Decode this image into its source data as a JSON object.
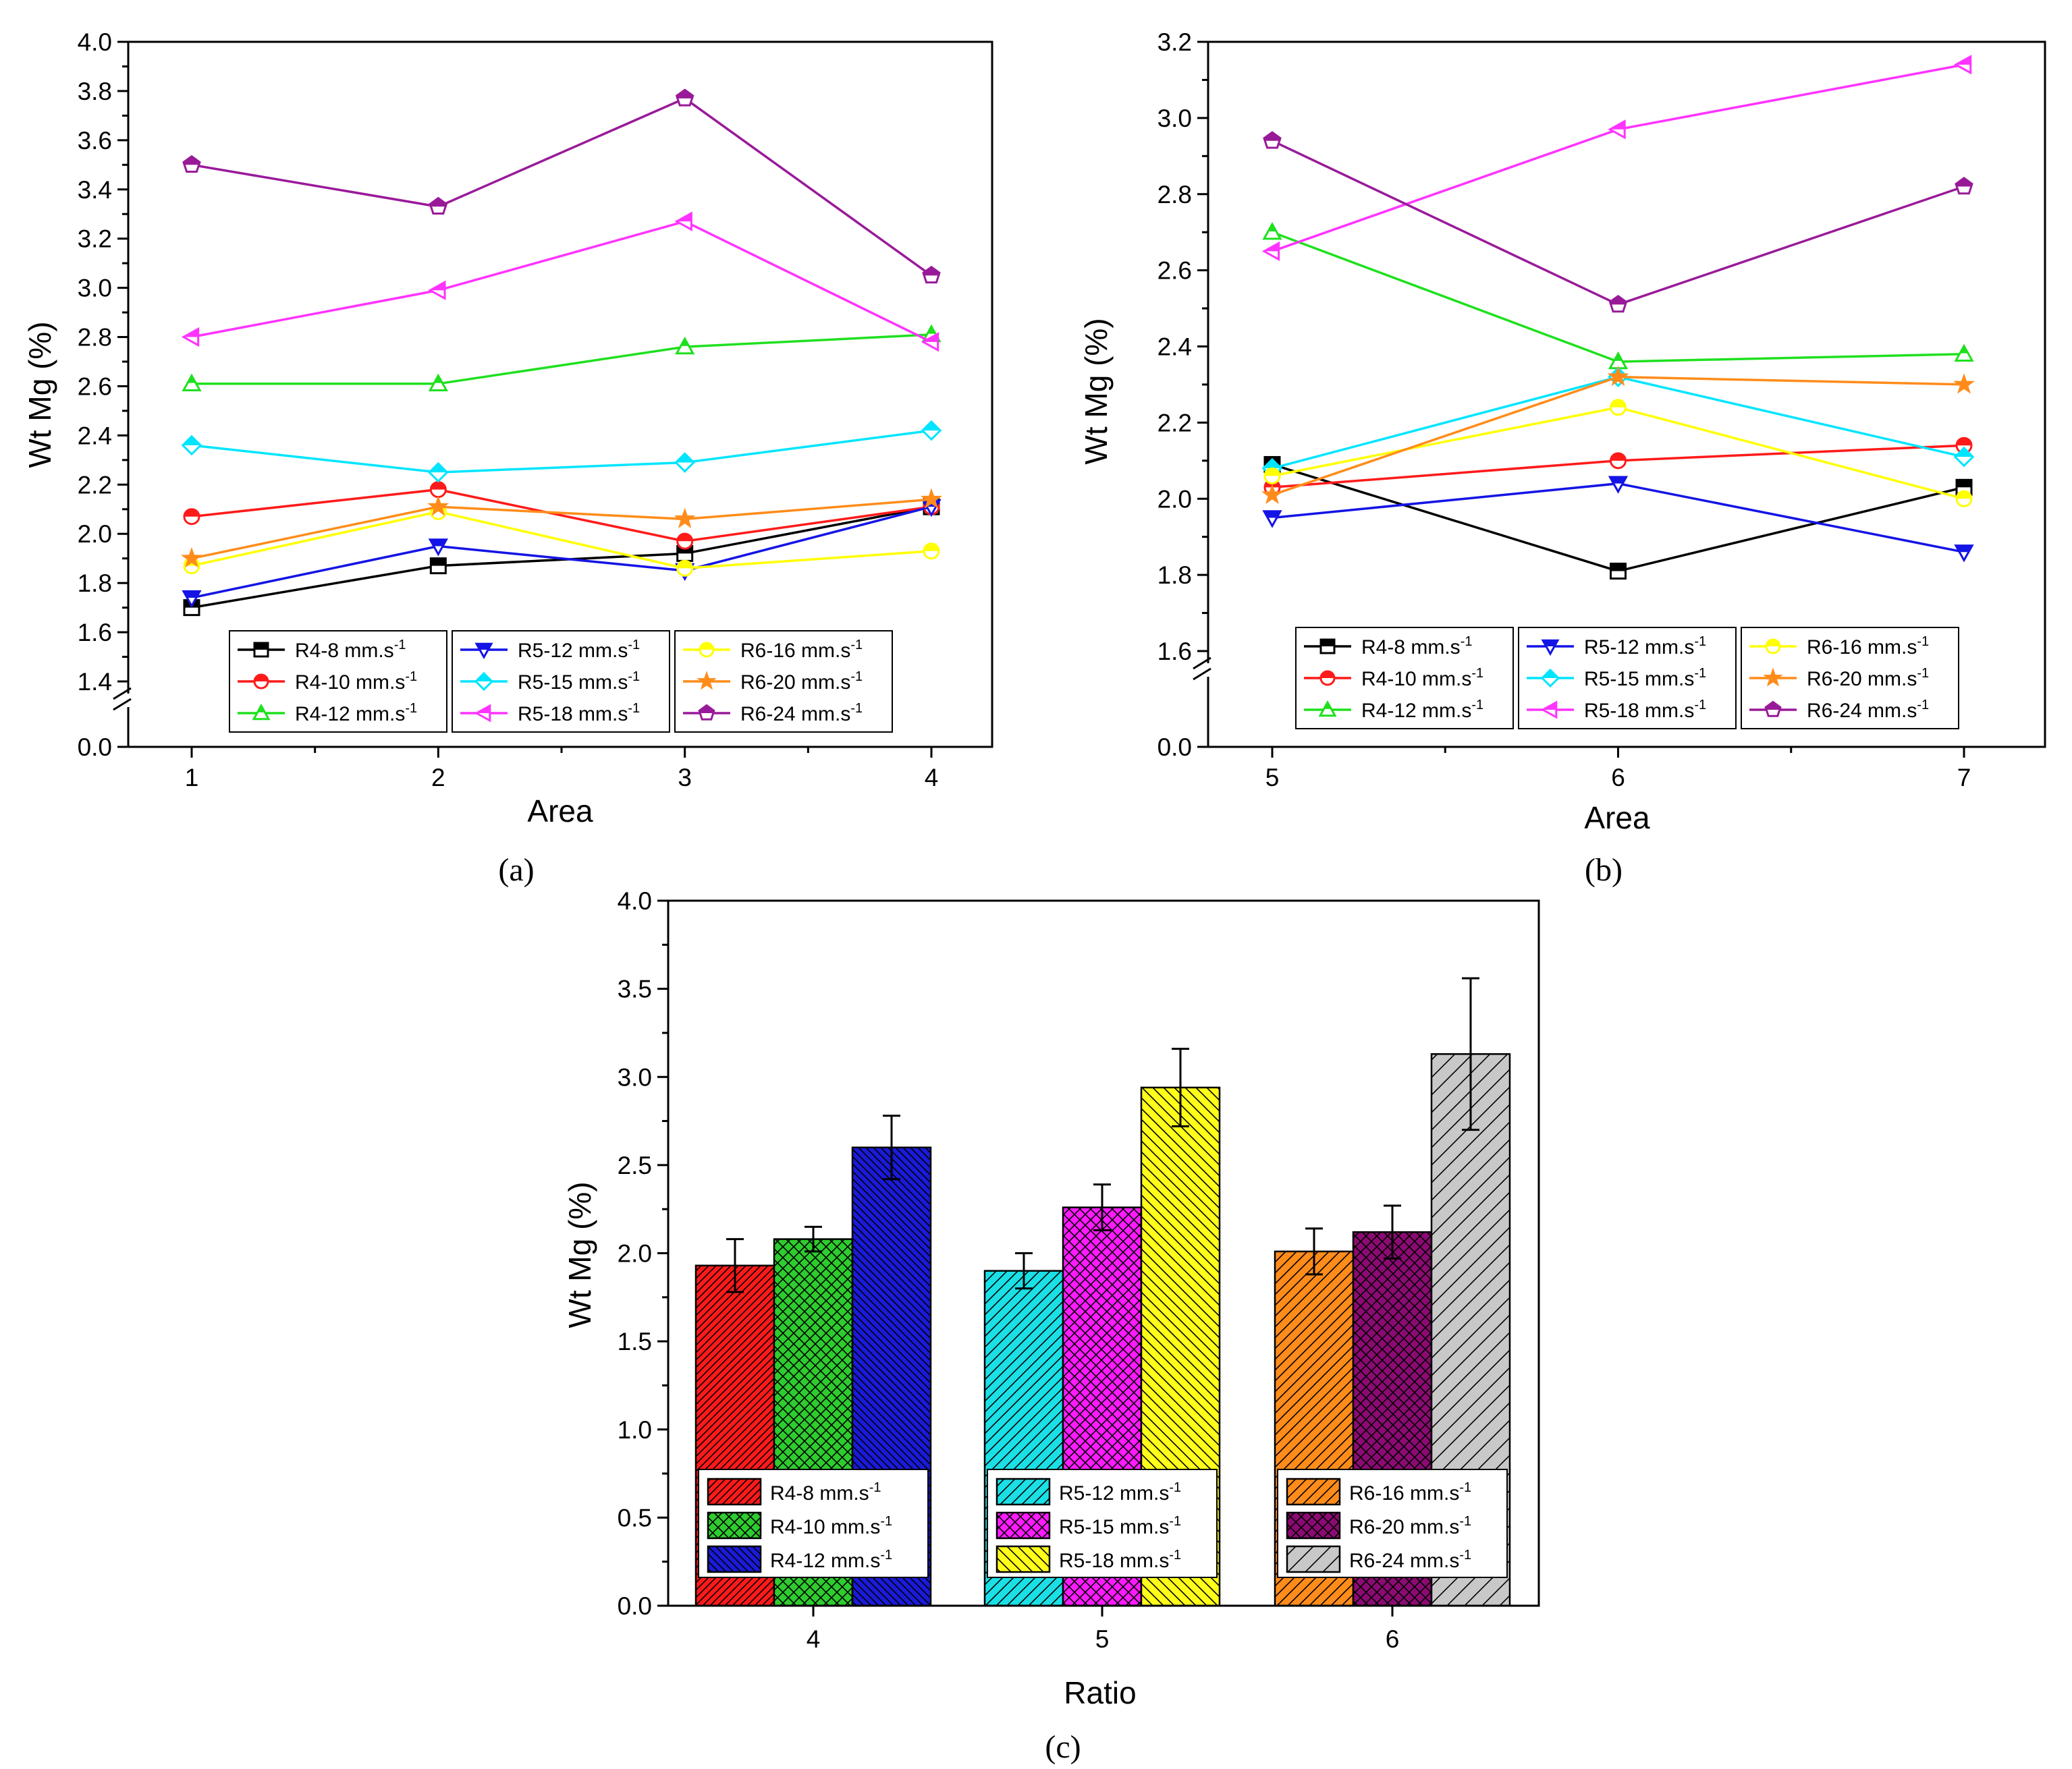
{
  "chart_data": [
    {
      "panel": "(a)",
      "type": "line",
      "xlabel": "Area",
      "ylabel": "Wt Mg (%)",
      "x": [
        1,
        2,
        3,
        4
      ],
      "ylim": [
        1.4,
        4.0
      ],
      "y_break": true,
      "y_break_base": "0.0",
      "yticks": [
        "1.4",
        "1.6",
        "1.8",
        "2.0",
        "2.2",
        "2.4",
        "2.6",
        "2.8",
        "3.0",
        "3.2",
        "3.4",
        "3.6",
        "3.8",
        "4.0"
      ],
      "xticks": [
        "1",
        "2",
        "3",
        "4"
      ],
      "legend_location": "bottom-center",
      "series": [
        {
          "name": "R4-8 mm.s",
          "color": "#000000",
          "marker": "square",
          "values": [
            1.7,
            1.87,
            1.92,
            2.11
          ]
        },
        {
          "name": "R4-10 mm.s",
          "color": "#ff1a1a",
          "marker": "circle",
          "values": [
            2.07,
            2.18,
            1.97,
            2.11
          ]
        },
        {
          "name": "R4-12 mm.s",
          "color": "#1fe01f",
          "marker": "triangle-up",
          "values": [
            2.61,
            2.61,
            2.76,
            2.81
          ]
        },
        {
          "name": "R5-12 mm.s",
          "color": "#1414e6",
          "marker": "triangle-down",
          "values": [
            1.74,
            1.95,
            1.85,
            2.11
          ]
        },
        {
          "name": "R5-15 mm.s",
          "color": "#00e5ff",
          "marker": "diamond",
          "values": [
            2.36,
            2.25,
            2.29,
            2.42
          ]
        },
        {
          "name": "R5-18 mm.s",
          "color": "#ff33ff",
          "marker": "triangle-left",
          "values": [
            2.8,
            2.99,
            3.27,
            2.78
          ]
        },
        {
          "name": "R6-16 mm.s",
          "color": "#ffff00",
          "marker": "circle",
          "values": [
            1.87,
            2.09,
            1.86,
            1.93
          ]
        },
        {
          "name": "R6-20 mm.s",
          "color": "#ff8c1a",
          "marker": "star",
          "values": [
            1.9,
            2.11,
            2.06,
            2.14
          ]
        },
        {
          "name": "R6-24 mm.s",
          "color": "#991a99",
          "marker": "pentagon",
          "values": [
            3.5,
            3.33,
            3.77,
            3.05
          ]
        }
      ],
      "legend_superscript": "-1"
    },
    {
      "panel": "(b)",
      "type": "line",
      "xlabel": "Area",
      "ylabel": "Wt Mg (%)",
      "x": [
        5,
        6,
        7
      ],
      "ylim": [
        1.6,
        3.2
      ],
      "y_break": true,
      "y_break_base": "0.0",
      "yticks": [
        "1.6",
        "1.8",
        "2.0",
        "2.2",
        "2.4",
        "2.6",
        "2.8",
        "3.0",
        "3.2"
      ],
      "xticks": [
        "5",
        "6",
        "7"
      ],
      "legend_location": "bottom-center",
      "series": [
        {
          "name": "R4-8 mm.s",
          "color": "#000000",
          "marker": "square",
          "values": [
            2.09,
            1.81,
            2.03
          ]
        },
        {
          "name": "R4-10 mm.s",
          "color": "#ff1a1a",
          "marker": "circle",
          "values": [
            2.03,
            2.1,
            2.14
          ]
        },
        {
          "name": "R4-12 mm.s",
          "color": "#1fe01f",
          "marker": "triangle-up",
          "values": [
            2.7,
            2.36,
            2.38
          ]
        },
        {
          "name": "R5-12 mm.s",
          "color": "#1414e6",
          "marker": "triangle-down",
          "values": [
            1.95,
            2.04,
            1.86
          ]
        },
        {
          "name": "R5-15 mm.s",
          "color": "#00e5ff",
          "marker": "diamond",
          "values": [
            2.08,
            2.32,
            2.11
          ]
        },
        {
          "name": "R5-18 mm.s",
          "color": "#ff33ff",
          "marker": "triangle-left",
          "values": [
            2.65,
            2.97,
            3.14
          ]
        },
        {
          "name": "R6-16 mm.s",
          "color": "#ffff00",
          "marker": "circle",
          "values": [
            2.06,
            2.24,
            2.0
          ]
        },
        {
          "name": "R6-20 mm.s",
          "color": "#ff8c1a",
          "marker": "star",
          "values": [
            2.01,
            2.32,
            2.3
          ]
        },
        {
          "name": "R6-24 mm.s",
          "color": "#991a99",
          "marker": "pentagon",
          "values": [
            2.94,
            2.51,
            2.82
          ]
        }
      ],
      "legend_superscript": "-1"
    },
    {
      "panel": "(c)",
      "type": "bar",
      "xlabel": "Ratio",
      "ylabel": "Wt Mg (%)",
      "categories": [
        "4",
        "5",
        "6"
      ],
      "ylim": [
        0.0,
        4.0
      ],
      "yticks": [
        "0.0",
        "0.5",
        "1.0",
        "1.5",
        "2.0",
        "2.5",
        "3.0",
        "3.5",
        "4.0"
      ],
      "legend_location": "bottom, one per group",
      "groups": [
        {
          "category": "4",
          "bars": [
            {
              "name": "R4-8 mm.s",
              "color": "#ff1a1a",
              "pattern": "diag-dense",
              "value": 1.93,
              "error": 0.15
            },
            {
              "name": "R4-10 mm.s",
              "color": "#2ecc2e",
              "pattern": "crosshatch",
              "value": 2.08,
              "error": 0.07
            },
            {
              "name": "R4-12 mm.s",
              "color": "#1a1ad9",
              "pattern": "diag-dense-back",
              "value": 2.6,
              "error": 0.18
            }
          ]
        },
        {
          "category": "5",
          "bars": [
            {
              "name": "R5-12 mm.s",
              "color": "#1ae0e6",
              "pattern": "diag",
              "value": 1.9,
              "error": 0.1
            },
            {
              "name": "R5-15 mm.s",
              "color": "#ff1aff",
              "pattern": "crosshatch",
              "value": 2.26,
              "error": 0.13
            },
            {
              "name": "R5-18 mm.s",
              "color": "#ffff1a",
              "pattern": "diag-back",
              "value": 2.94,
              "error": 0.22
            }
          ]
        },
        {
          "category": "6",
          "bars": [
            {
              "name": "R6-16 mm.s",
              "color": "#ff8c1a",
              "pattern": "diag",
              "value": 2.01,
              "error": 0.13
            },
            {
              "name": "R6-20 mm.s",
              "color": "#8c0a73",
              "pattern": "crosshatch",
              "value": 2.12,
              "error": 0.15
            },
            {
              "name": "R6-24 mm.s",
              "color": "#c8c8c8",
              "pattern": "diag-sparse",
              "value": 3.13,
              "error": 0.43
            }
          ]
        }
      ],
      "legend_superscript": "-1"
    }
  ],
  "panel_labels": [
    "(a)",
    "(b)",
    "(c)"
  ]
}
